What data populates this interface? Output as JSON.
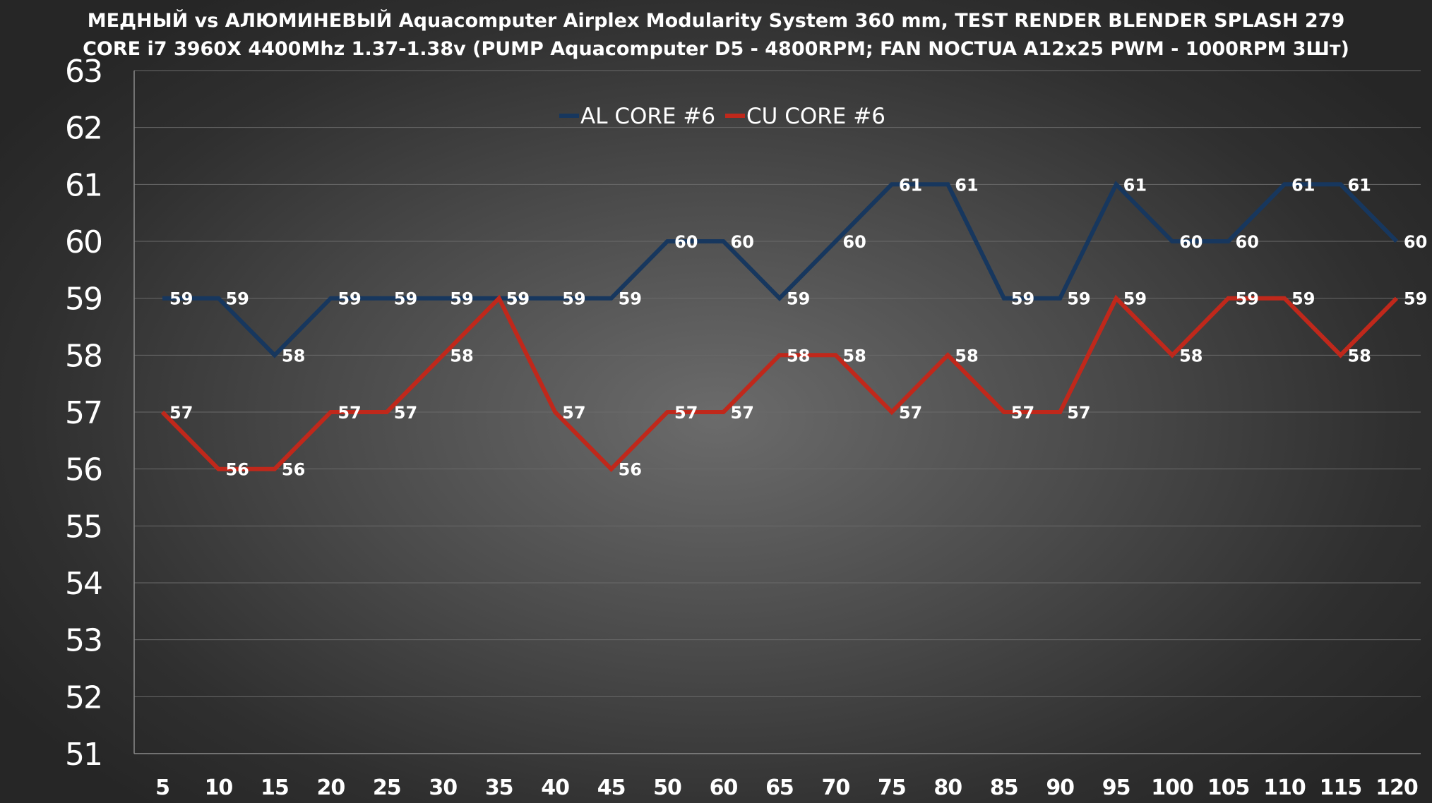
{
  "chart_data": {
    "type": "line",
    "title_lines": [
      "МЕДНЫЙ vs АЛЮМИНЕВЫЙ Aquacomputer Airplex Modularity System 360 mm, TEST RENDER BLENDER SPLASH 279",
      "CORE i7 3960X 4400Mhz 1.37-1.38v (PUMP Aquacomputer D5 - 4800RPM; FAN NOCTUA A12x25 PWM - 1000RPM 3Шт)"
    ],
    "categories": [
      "5",
      "10",
      "15",
      "20",
      "25",
      "30",
      "35",
      "40",
      "45",
      "50",
      "60",
      "65",
      "70",
      "75",
      "80",
      "85",
      "90",
      "95",
      "100",
      "105",
      "110",
      "115",
      "120"
    ],
    "ylim": [
      51,
      63
    ],
    "yticks": [
      51,
      52,
      53,
      54,
      55,
      56,
      57,
      58,
      59,
      60,
      61,
      62,
      63
    ],
    "grid": true,
    "legend_position": "top-center",
    "series": [
      {
        "name": "AL CORE #6",
        "color": "#17375e",
        "values": [
          59,
          59,
          58,
          59,
          59,
          59,
          59,
          59,
          59,
          60,
          60,
          59,
          60,
          61,
          61,
          59,
          59,
          61,
          60,
          60,
          61,
          61,
          60
        ]
      },
      {
        "name": "CU CORE #6",
        "color": "#c0281b",
        "values": [
          57,
          56,
          56,
          57,
          57,
          58,
          59,
          57,
          56,
          57,
          57,
          58,
          58,
          57,
          58,
          57,
          57,
          59,
          58,
          59,
          59,
          58,
          59
        ]
      }
    ]
  }
}
